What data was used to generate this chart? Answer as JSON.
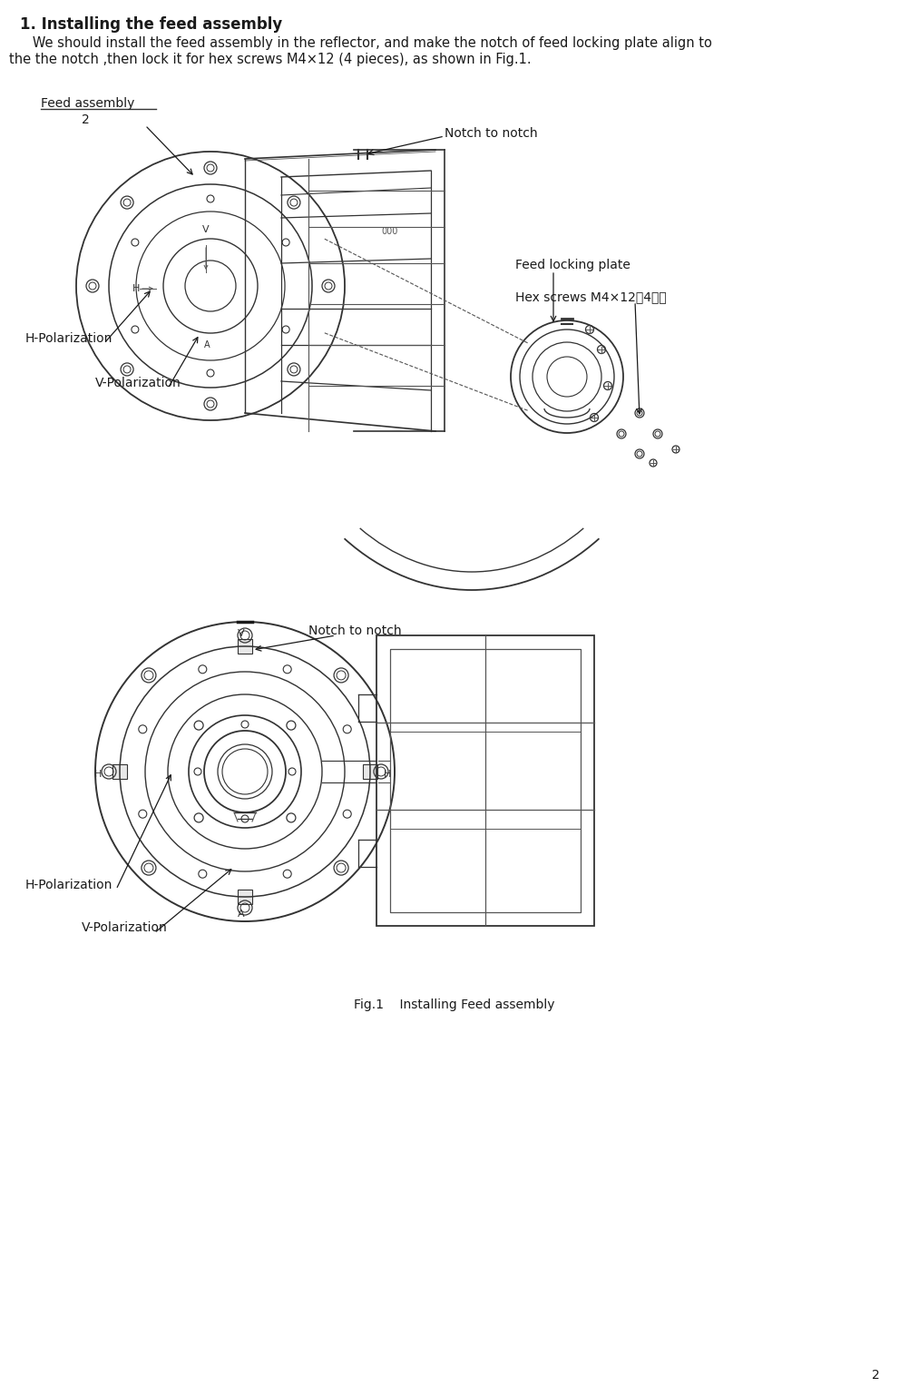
{
  "title": "1. Installing the feed assembly",
  "body_line1": "   We should install the feed assembly in the reflector, and make the notch of feed locking plate align to",
  "body_line2": "the the notch ,then lock it for hex screws M4×12 (4 pieces), as shown in Fig.1.",
  "fig_caption": "Fig.1    Installing Feed assembly",
  "page_number": "2",
  "label_feed_assembly": "Feed assembly",
  "label_num": "2",
  "label_notch_top": "Notch to notch",
  "label_feed_locking": "Feed locking plate",
  "label_hex_screws": "Hex screws M4×12（4件）",
  "label_h_pol_top": "H-Polarization",
  "label_v_pol_top": "V-Polarization",
  "label_notch_bot": "Notch to notch",
  "label_h_pol_bot": "H-Polarization",
  "label_v_pol_bot": "V-Polarization",
  "bg": "#ffffff",
  "lc": "#1a1a1a",
  "lc2": "#333333",
  "lc3": "#555555",
  "title_fs": 12,
  "body_fs": 10.5,
  "ann_fs": 10,
  "cap_fs": 10
}
